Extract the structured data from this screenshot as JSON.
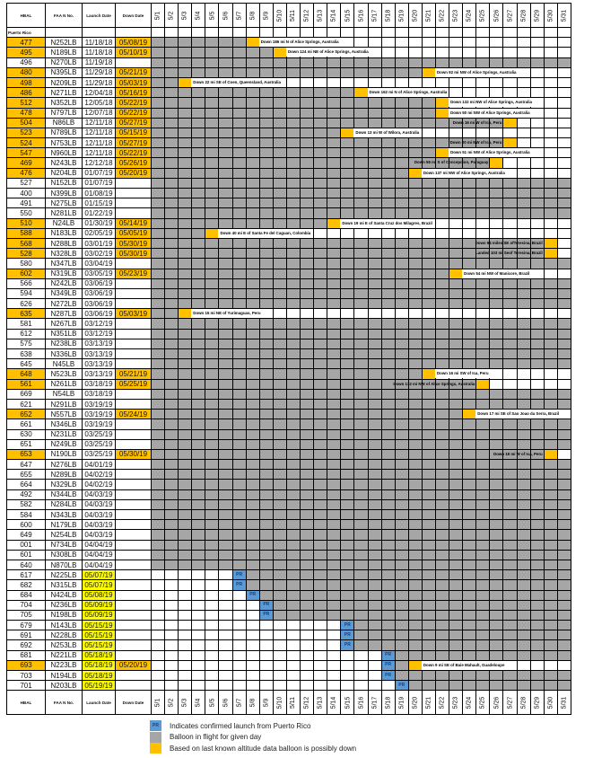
{
  "headers": {
    "hbal": "HBAL",
    "faa": "FAA N No.",
    "launch": "Launch Date",
    "down": "Down Date"
  },
  "puerto_rico_label": "Puerto Rico",
  "days": [
    "5/1",
    "5/2",
    "5/3",
    "5/4",
    "5/5",
    "5/6",
    "5/7",
    "5/8",
    "5/9",
    "5/10",
    "5/11",
    "5/12",
    "5/13",
    "5/14",
    "5/15",
    "5/16",
    "5/17",
    "5/18",
    "5/19",
    "5/20",
    "5/21",
    "5/22",
    "5/23",
    "5/24",
    "5/25",
    "5/26",
    "5/27",
    "5/28",
    "5/29",
    "5/30",
    "5/31"
  ],
  "pr_label": "PR",
  "colors": {
    "in_flight": "#a6a6a6",
    "down": "#ffc000",
    "pr": "#5b9bd5",
    "new_launch": "#ffff00"
  },
  "rows": [
    {
      "hbal": "477",
      "faa": "N252LB",
      "launch": "11/18/18",
      "down": "05/08/19",
      "note": "Down 186 mi N of Alice Springs, Australia"
    },
    {
      "hbal": "495",
      "faa": "N189LB",
      "launch": "11/18/18",
      "down": "05/10/19",
      "note": "Down 124 mi NE of Alice Springs, Australia"
    },
    {
      "hbal": "496",
      "faa": "N270LB",
      "launch": "11/19/18",
      "down": ""
    },
    {
      "hbal": "480",
      "faa": "N395LB",
      "launch": "11/29/18",
      "down": "05/21/19",
      "note": "Down 92 mi NW of Alice Springs, Australia"
    },
    {
      "hbal": "498",
      "faa": "N209LB",
      "launch": "11/29/18",
      "down": "05/03/19",
      "note": "Down 22 mi SE of Coen, Queensland, Australia"
    },
    {
      "hbal": "486",
      "faa": "N271LB",
      "launch": "12/04/18",
      "down": "05/16/19",
      "note": "Down 162 mi N of Alice Springs, Australia"
    },
    {
      "hbal": "512",
      "faa": "N352LB",
      "launch": "12/05/18",
      "down": "05/22/19",
      "note": "Down 132 mi NW of Alice Springs, Australia"
    },
    {
      "hbal": "478",
      "faa": "N797LB",
      "launch": "12/07/18",
      "down": "05/22/19",
      "note": "Down 50 mi NW of Alice Springs, Australia"
    },
    {
      "hbal": "504",
      "faa": "N86LB",
      "launch": "12/11/18",
      "down": "05/27/19",
      "note": "Down 16 mi W of Ica, Peru"
    },
    {
      "hbal": "523",
      "faa": "N789LB",
      "launch": "12/11/18",
      "down": "05/15/19",
      "note": "Down 13 mi W of Wilora, Australia"
    },
    {
      "hbal": "524",
      "faa": "N753LB",
      "launch": "12/11/18",
      "down": "05/27/19",
      "note": "Down 20 mi NW of Ica, Peru"
    },
    {
      "hbal": "547",
      "faa": "N960LB",
      "launch": "12/11/18",
      "down": "05/22/19",
      "note": "Down 51 mi NW of Alice Springs, Australia"
    },
    {
      "hbal": "469",
      "faa": "N243LB",
      "launch": "12/12/18",
      "down": "05/26/19",
      "note": "Down 55 mi S of Concepcion, Paraguay"
    },
    {
      "hbal": "476",
      "faa": "N204LB",
      "launch": "01/07/19",
      "down": "05/20/19",
      "note": "Down 137 mi NW of Alice Springs, Australia"
    },
    {
      "hbal": "527",
      "faa": "N152LB",
      "launch": "01/07/19",
      "down": ""
    },
    {
      "hbal": "400",
      "faa": "N399LB",
      "launch": "01/08/19",
      "down": ""
    },
    {
      "hbal": "491",
      "faa": "N275LB",
      "launch": "01/15/19",
      "down": ""
    },
    {
      "hbal": "550",
      "faa": "N281LB",
      "launch": "01/22/19",
      "down": ""
    },
    {
      "hbal": "510",
      "faa": "N24LB",
      "launch": "01/30/19",
      "down": "05/14/19",
      "note": "Down 19 mi E of Santa Cruz dos Milagres, Brazil"
    },
    {
      "hbal": "588",
      "faa": "N183LB",
      "launch": "02/05/19",
      "down": "05/05/19",
      "note": "Down 40 mi E of Santa Fe del Caguan, Colombia"
    },
    {
      "hbal": "568",
      "faa": "N288LB",
      "launch": "03/01/19",
      "down": "05/30/19",
      "note": "Down 94 miles SE ofTeresina, Brazil"
    },
    {
      "hbal": "528",
      "faa": "N328LB",
      "launch": "03/02/19",
      "down": "05/30/19",
      "note": "Landed 103 mi Seof Teresina, Brazil"
    },
    {
      "hbal": "580",
      "faa": "N347LB",
      "launch": "03/04/19",
      "down": ""
    },
    {
      "hbal": "602",
      "faa": "N319LB",
      "launch": "03/05/19",
      "down": "05/23/19",
      "note": "Down 54 mi NW of Manicore, Brazil"
    },
    {
      "hbal": "566",
      "faa": "N242LB",
      "launch": "03/06/19",
      "down": ""
    },
    {
      "hbal": "594",
      "faa": "N349LB",
      "launch": "03/06/19",
      "down": ""
    },
    {
      "hbal": "626",
      "faa": "N272LB",
      "launch": "03/06/19",
      "down": ""
    },
    {
      "hbal": "635",
      "faa": "N287LB",
      "launch": "03/06/19",
      "down": "05/03/19",
      "note": "Down 15 mi NE of Yurimaguas, Peru"
    },
    {
      "hbal": "581",
      "faa": "N267LB",
      "launch": "03/12/19",
      "down": ""
    },
    {
      "hbal": "612",
      "faa": "N351LB",
      "launch": "03/12/19",
      "down": ""
    },
    {
      "hbal": "575",
      "faa": "N238LB",
      "launch": "03/13/19",
      "down": ""
    },
    {
      "hbal": "638",
      "faa": "N336LB",
      "launch": "03/13/19",
      "down": ""
    },
    {
      "hbal": "645",
      "faa": "N45LB",
      "launch": "03/13/19",
      "down": ""
    },
    {
      "hbal": "648",
      "faa": "N523LB",
      "launch": "03/13/19",
      "down": "05/21/19",
      "note": "Down 16 mi SW of Ica, Peru"
    },
    {
      "hbal": "561",
      "faa": "N261LB",
      "launch": "03/18/19",
      "down": "05/25/19",
      "note": "Down 132 mi NW of Alice Springs, Australia"
    },
    {
      "hbal": "669",
      "faa": "N54LB",
      "launch": "03/18/19",
      "down": ""
    },
    {
      "hbal": "621",
      "faa": "N291LB",
      "launch": "03/19/19",
      "down": ""
    },
    {
      "hbal": "652",
      "faa": "N557LB",
      "launch": "03/19/19",
      "down": "05/24/19",
      "note": "Down 17 mi SE of Sao Joao da Serra, Brazil"
    },
    {
      "hbal": "661",
      "faa": "N346LB",
      "launch": "03/19/19",
      "down": ""
    },
    {
      "hbal": "630",
      "faa": "N231LB",
      "launch": "03/25/19",
      "down": ""
    },
    {
      "hbal": "651",
      "faa": "N249LB",
      "launch": "03/25/19",
      "down": ""
    },
    {
      "hbal": "653",
      "faa": "N190LB",
      "launch": "03/25/19",
      "down": "05/30/19",
      "note": "Down 18 mi W of Ica, Peru"
    },
    {
      "hbal": "647",
      "faa": "N276LB",
      "launch": "04/01/19",
      "down": ""
    },
    {
      "hbal": "655",
      "faa": "N289LB",
      "launch": "04/02/19",
      "down": ""
    },
    {
      "hbal": "664",
      "faa": "N329LB",
      "launch": "04/02/19",
      "down": ""
    },
    {
      "hbal": "492",
      "faa": "N344LB",
      "launch": "04/03/19",
      "down": ""
    },
    {
      "hbal": "582",
      "faa": "N284LB",
      "launch": "04/03/19",
      "down": ""
    },
    {
      "hbal": "584",
      "faa": "N343LB",
      "launch": "04/03/19",
      "down": ""
    },
    {
      "hbal": "600",
      "faa": "N179LB",
      "launch": "04/03/19",
      "down": ""
    },
    {
      "hbal": "649",
      "faa": "N254LB",
      "launch": "04/03/19",
      "down": ""
    },
    {
      "hbal": "001",
      "faa": "N734LB",
      "launch": "04/04/19",
      "down": ""
    },
    {
      "hbal": "601",
      "faa": "N308LB",
      "launch": "04/04/19",
      "down": ""
    },
    {
      "hbal": "640",
      "faa": "N870LB",
      "launch": "04/04/19",
      "down": ""
    },
    {
      "hbal": "617",
      "faa": "N225LB",
      "launch": "05/07/19",
      "down": "",
      "pr": true
    },
    {
      "hbal": "682",
      "faa": "N315LB",
      "launch": "05/07/19",
      "down": "",
      "pr": true
    },
    {
      "hbal": "684",
      "faa": "N424LB",
      "launch": "05/08/19",
      "down": "",
      "pr": true
    },
    {
      "hbal": "704",
      "faa": "N236LB",
      "launch": "05/09/19",
      "down": "",
      "pr": true
    },
    {
      "hbal": "705",
      "faa": "N198LB",
      "launch": "05/09/19",
      "down": "",
      "pr": true
    },
    {
      "hbal": "679",
      "faa": "N143LB",
      "launch": "05/15/19",
      "down": "",
      "pr": true
    },
    {
      "hbal": "691",
      "faa": "N228LB",
      "launch": "05/15/19",
      "down": "",
      "pr": true
    },
    {
      "hbal": "692",
      "faa": "N253LB",
      "launch": "05/15/19",
      "down": "",
      "pr": true
    },
    {
      "hbal": "681",
      "faa": "N221LB",
      "launch": "05/18/19",
      "down": "",
      "pr": true
    },
    {
      "hbal": "693",
      "faa": "N223LB",
      "launch": "05/18/19",
      "down": "05/20/19",
      "pr": true,
      "note": "Down 9 mi SE of Baie Mahault, Guadeloupe"
    },
    {
      "hbal": "703",
      "faa": "N194LB",
      "launch": "05/18/19",
      "down": "",
      "pr": true
    },
    {
      "hbal": "701",
      "faa": "N203LB",
      "launch": "05/19/19",
      "down": "",
      "pr": true
    }
  ],
  "legend": [
    {
      "label": "Indicates confirmed launch from Puerto Rico",
      "swatch": "pr"
    },
    {
      "label": "Balloon in flight for given day",
      "swatch": "in_flight"
    },
    {
      "label": "Based on last known altitude data balloon is possibly down",
      "swatch": "down"
    }
  ]
}
